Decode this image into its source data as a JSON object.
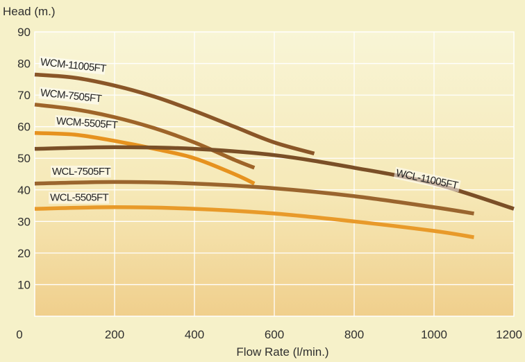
{
  "chart_data": {
    "type": "line",
    "title": "",
    "xlabel": "Flow Rate (l/min.)",
    "ylabel": "Head (m.)",
    "xlim": [
      0,
      1200
    ],
    "ylim": [
      0,
      90
    ],
    "x_ticks": [
      "0",
      "200",
      "400",
      "600",
      "800",
      "1000",
      "1200"
    ],
    "y_ticks": [
      "10",
      "20",
      "30",
      "40",
      "50",
      "60",
      "70",
      "80",
      "90"
    ],
    "grid": true,
    "series": [
      {
        "name": "WCM-11005FT",
        "color": "#8a5628",
        "x": [
          0,
          100,
          200,
          300,
          400,
          500,
          600,
          700
        ],
        "y": [
          76.5,
          75.5,
          73,
          69.5,
          65,
          60,
          55,
          51.5
        ]
      },
      {
        "name": "WCM-7505FT",
        "color": "#9e6429",
        "x": [
          0,
          100,
          200,
          300,
          400,
          500,
          550
        ],
        "y": [
          67,
          65.5,
          63,
          59.5,
          55,
          49.5,
          47
        ]
      },
      {
        "name": "WCM-5505FT",
        "color": "#e6921f",
        "x": [
          0,
          100,
          200,
          300,
          400,
          500,
          550
        ],
        "y": [
          58,
          57.5,
          55.5,
          53,
          50,
          45,
          42
        ]
      },
      {
        "name": "WCL-11005FT",
        "color": "#7a4f27",
        "x": [
          0,
          200,
          400,
          600,
          800,
          1000,
          1200
        ],
        "y": [
          53,
          53.5,
          53,
          51,
          47,
          42,
          34
        ]
      },
      {
        "name": "WCL-7505FT",
        "color": "#9a652e",
        "x": [
          0,
          200,
          400,
          600,
          800,
          1000,
          1100
        ],
        "y": [
          42,
          42.5,
          42,
          40.5,
          38,
          34.5,
          32.5
        ]
      },
      {
        "name": "WCL-5505FT",
        "color": "#e89a2a",
        "x": [
          0,
          200,
          400,
          600,
          800,
          1000,
          1100
        ],
        "y": [
          34,
          34.5,
          34,
          32.5,
          30,
          27,
          25
        ]
      }
    ]
  }
}
